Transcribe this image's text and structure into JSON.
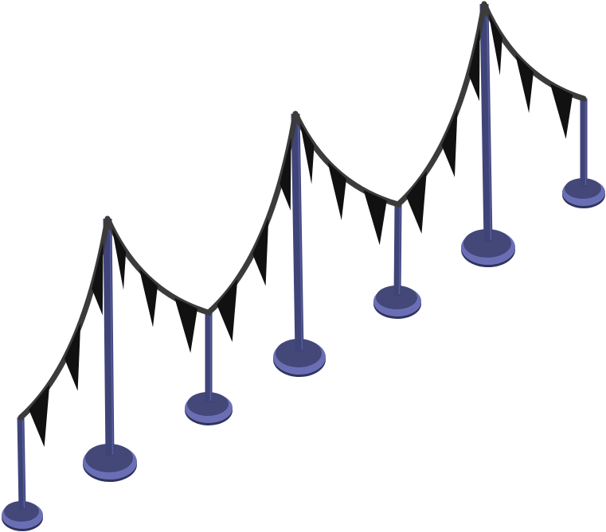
{
  "sprite": {
    "name": "bunting-pole-fence",
    "colors": {
      "pole": "#3f4478",
      "pole_highlight": "#6a6fb5",
      "base_top": "#434879",
      "base_rim": "#6a6fb5",
      "base_dark": "#2f335e",
      "rope": "#3b3b3b",
      "pennant": "#111111",
      "background": "#ffffff"
    },
    "pole_kinds": [
      "tall",
      "short"
    ],
    "pennants_per_span": 3
  }
}
